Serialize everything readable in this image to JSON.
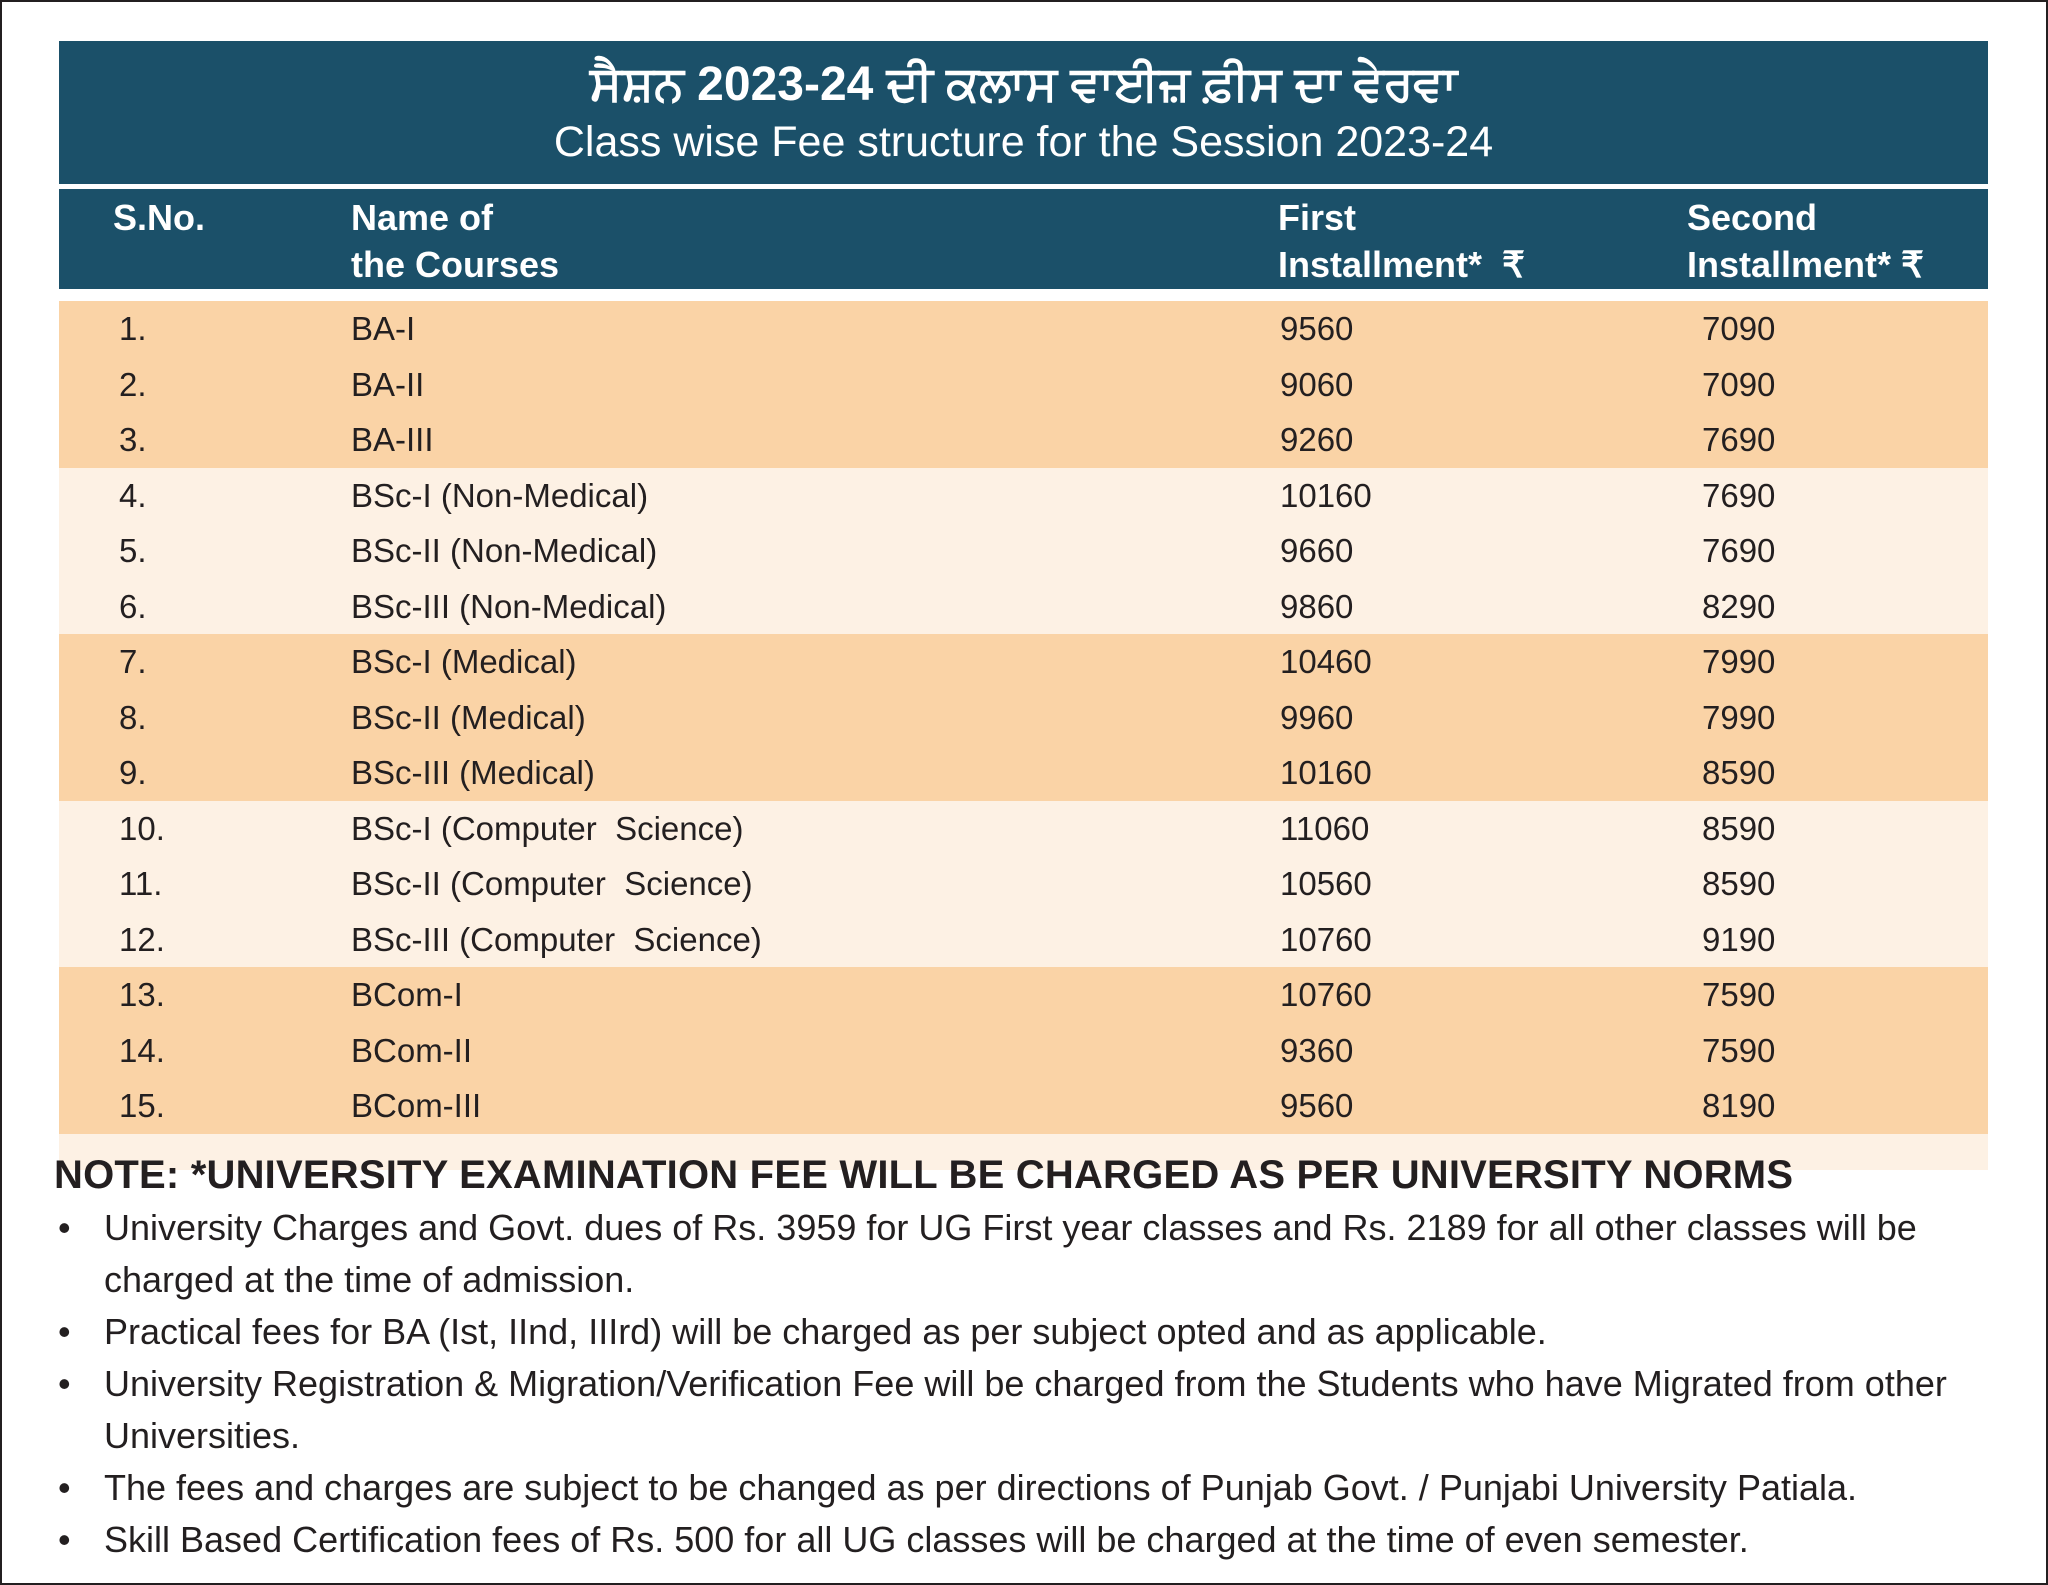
{
  "header": {
    "title_punjabi": "ਸੈਸ਼ਨ 2023-24 ਦੀ ਕਲਾਸ ਵਾਈਜ਼ ਫ਼ੀਸ ਦਾ ਵੇਰਵਾ",
    "title_english": "Class wise Fee structure for the Session 2023-24"
  },
  "columns": {
    "sno": "S.No.",
    "name_line1": "Name of",
    "name_line2": "the Courses",
    "first_line1": "First",
    "first_line2": "Installment*  ₹",
    "second_line1": "Second",
    "second_line2": "Installment* ₹"
  },
  "rows": [
    {
      "sno": "1.",
      "name": "BA-I",
      "first": "9560",
      "second": "7090"
    },
    {
      "sno": "2.",
      "name": "BA-II",
      "first": "9060",
      "second": "7090"
    },
    {
      "sno": "3.",
      "name": "BA-III",
      "first": "9260",
      "second": "7690"
    },
    {
      "sno": "4.",
      "name": "BSc-I (Non-Medical)",
      "first": "10160",
      "second": "7690"
    },
    {
      "sno": "5.",
      "name": "BSc-II (Non-Medical)",
      "first": "9660",
      "second": "7690"
    },
    {
      "sno": "6.",
      "name": "BSc-III (Non-Medical)",
      "first": "9860",
      "second": "8290"
    },
    {
      "sno": "7.",
      "name": "BSc-I (Medical)",
      "first": "10460",
      "second": "7990"
    },
    {
      "sno": "8.",
      "name": "BSc-II (Medical)",
      "first": "9960",
      "second": "7990"
    },
    {
      "sno": "9.",
      "name": "BSc-III (Medical)",
      "first": "10160",
      "second": "8590"
    },
    {
      "sno": "10.",
      "name": "BSc-I (Computer  Science)",
      "first": "11060",
      "second": "8590"
    },
    {
      "sno": "11.",
      "name": "BSc-II (Computer  Science)",
      "first": "10560",
      "second": "8590"
    },
    {
      "sno": "12.",
      "name": "BSc-III (Computer  Science)",
      "first": "10760",
      "second": "9190"
    },
    {
      "sno": "13.",
      "name": "BCom-I",
      "first": "10760",
      "second": "7590"
    },
    {
      "sno": "14.",
      "name": "BCom-II",
      "first": "9360",
      "second": "7590"
    },
    {
      "sno": "15.",
      "name": "BCom-III",
      "first": "9560",
      "second": "8190"
    }
  ],
  "note_title": "NOTE: *UNIVERSITY EXAMINATION FEE WILL BE CHARGED AS PER UNIVERSITY NORMS",
  "notes": [
    "University Charges and Govt. dues of Rs. 3959 for UG First year classes and Rs. 2189 for all other classes will be charged at the time of admission.",
    "Practical fees for BA (Ist, IInd, IIIrd) will be charged as per subject opted and as applicable.",
    "University Registration & Migration/Verification Fee will be charged from the Students who have Migrated from other Universities.",
    "The fees and charges are subject to be changed as per directions of Punjab Govt. / Punjabi University Patiala.",
    "Skill Based Certification fees of Rs. 500 for all UG classes will be charged at the time of even semester."
  ],
  "bullet_glyph": "•",
  "colors": {
    "header_band": "#1b5069",
    "row_group_dark": "#fad3a6",
    "row_group_light": "#fdf1e4"
  }
}
